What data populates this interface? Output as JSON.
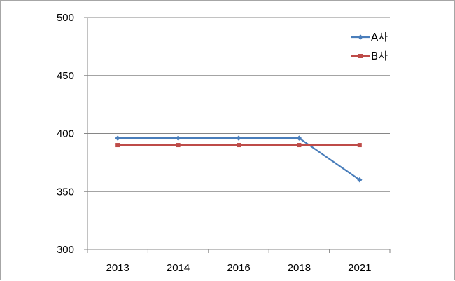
{
  "chart_data": {
    "type": "line",
    "title": "",
    "xlabel": "",
    "ylabel": "",
    "categories": [
      "2013",
      "2014",
      "2016",
      "2018",
      "2021"
    ],
    "ylim": [
      300,
      500
    ],
    "yticks": [
      300,
      350,
      400,
      450,
      500
    ],
    "grid": "horizontal",
    "legend": "top-right",
    "series": [
      {
        "name": "A사",
        "color": "#4a7ebb",
        "marker": "diamond",
        "values": [
          396,
          396,
          396,
          396,
          360
        ]
      },
      {
        "name": "B사",
        "color": "#be4b48",
        "marker": "square",
        "values": [
          390,
          390,
          390,
          390,
          390
        ]
      }
    ]
  }
}
